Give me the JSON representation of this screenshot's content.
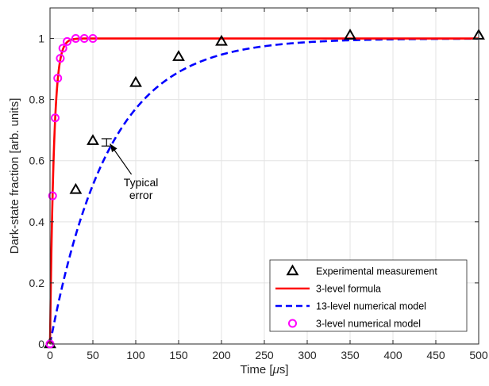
{
  "chart_data": {
    "type": "line",
    "xlabel_main": "Time [",
    "xlabel_unit": "μ",
    "xlabel_tail": "s]",
    "ylabel": "Dark-state fraction [arb. units]",
    "xlim": [
      0,
      500
    ],
    "ylim": [
      0,
      1.1
    ],
    "x_ticks": [
      0,
      50,
      100,
      150,
      200,
      250,
      300,
      350,
      400,
      450,
      500
    ],
    "y_ticks": [
      0,
      0.2,
      0.4,
      0.6,
      0.8,
      1
    ],
    "x_tick_labels": [
      "0",
      "50",
      "100",
      "150",
      "200",
      "250",
      "300",
      "350",
      "400",
      "450",
      "500"
    ],
    "y_tick_labels": [
      "0",
      "0.2",
      "0.4",
      "0.6",
      "0.8",
      "1"
    ],
    "grid": true,
    "legend_position": "bottom-right",
    "series": [
      {
        "name": "Experimental measurement",
        "kind": "scatter",
        "marker": "triangle",
        "color": "#000000",
        "x": [
          0,
          30,
          50,
          100,
          150,
          200,
          350,
          500
        ],
        "y": [
          0.0,
          0.505,
          0.665,
          0.855,
          0.94,
          0.99,
          1.01,
          1.01
        ]
      },
      {
        "name": "3-level formula",
        "kind": "line",
        "style": "solid",
        "color": "#ff0000",
        "tau": 4.5
      },
      {
        "name": "13-level numerical model",
        "kind": "line",
        "style": "dashed",
        "color": "#0000ff",
        "tau": 68
      },
      {
        "name": "3-level numerical model",
        "kind": "scatter",
        "marker": "circle",
        "color": "#ff00ff",
        "x": [
          0,
          3,
          6,
          9,
          12,
          15,
          20,
          30,
          40,
          50
        ],
        "y": [
          0.0,
          0.485,
          0.74,
          0.87,
          0.935,
          0.968,
          0.99,
          1.0,
          1.0,
          1.0
        ]
      }
    ],
    "error_bar": {
      "x": 66,
      "y": 0.66,
      "half_width_x": 6,
      "half_height": 0.012
    },
    "annotation": {
      "lines": [
        "Typical",
        "error"
      ],
      "arrow_tip": {
        "x": 70,
        "y": 0.655
      },
      "arrow_tail": {
        "x": 95,
        "y": 0.555
      }
    }
  }
}
